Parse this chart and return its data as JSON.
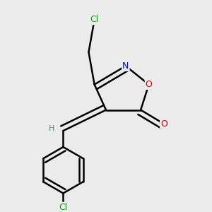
{
  "background_color": "#ebebeb",
  "atom_colors": {
    "C": "#000000",
    "H": "#4a8888",
    "N": "#0000cc",
    "O": "#cc0000",
    "Cl": "#00aa00"
  },
  "bond_color": "#000000",
  "bond_width": 1.8,
  "figsize": [
    3.0,
    3.0
  ],
  "dpi": 100,
  "xlim": [
    -0.55,
    0.85
  ],
  "ylim": [
    -0.85,
    0.95
  ]
}
